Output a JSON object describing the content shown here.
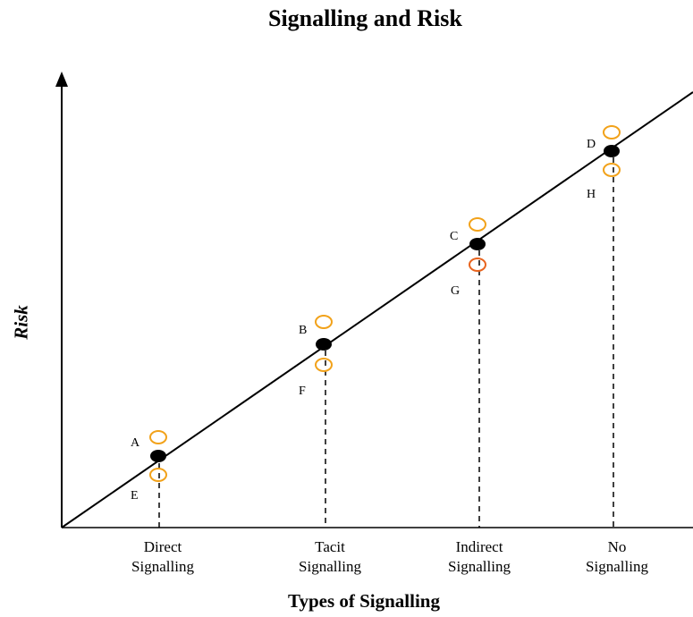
{
  "title": "Signalling and Risk",
  "x_axis_title": "Types of Signalling",
  "y_axis_title": "Risk",
  "colors": {
    "axis": "#000000",
    "point_fill": "#000000",
    "circle_stroke": "#f2a21a",
    "circle_stroke_alt": "#e8641e"
  },
  "categories": [
    {
      "line1": "Direct",
      "line2": "Signalling",
      "upper_label": "A",
      "lower_label": "E"
    },
    {
      "line1": "Tacit",
      "line2": "Signalling",
      "upper_label": "B",
      "lower_label": "F"
    },
    {
      "line1": "Indirect",
      "line2": "Signalling",
      "upper_label": "C",
      "lower_label": "G"
    },
    {
      "line1": "No",
      "line2": "Signalling",
      "upper_label": "D",
      "lower_label": "H"
    }
  ]
}
